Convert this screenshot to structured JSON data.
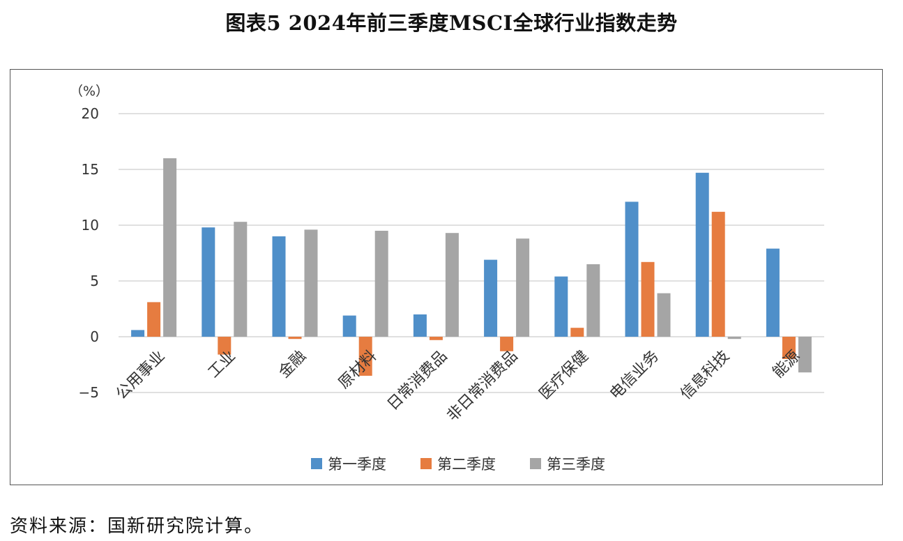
{
  "figure": {
    "title": "图表5 2024年前三季度MSCI全球行业指数走势",
    "source_note": "资料来源：国新研究院计算。"
  },
  "chart_data": {
    "type": "bar",
    "unit_label": "（%）",
    "categories": [
      "公用事业",
      "工业",
      "金融",
      "原材料",
      "日常消费品",
      "非日常消费品",
      "医疗保健",
      "电信业务",
      "信息科技",
      "能源"
    ],
    "series": [
      {
        "name": "第一季度",
        "color": "#4f8fc9",
        "values": [
          0.6,
          9.8,
          9.0,
          1.9,
          2.0,
          6.9,
          5.4,
          12.1,
          14.7,
          7.9
        ]
      },
      {
        "name": "第二季度",
        "color": "#e67c40",
        "values": [
          3.1,
          -1.6,
          -0.2,
          -3.5,
          -0.3,
          -1.3,
          0.8,
          6.7,
          11.2,
          -2.0
        ]
      },
      {
        "name": "第三季度",
        "color": "#a5a5a5",
        "values": [
          16.0,
          10.3,
          9.6,
          9.5,
          9.3,
          8.8,
          6.5,
          3.9,
          -0.2,
          -3.2
        ]
      }
    ],
    "y_ticks": [
      20,
      15,
      10,
      5,
      0,
      -5
    ],
    "ylim": [
      -5,
      20
    ],
    "grid": true,
    "legend_position": "bottom"
  }
}
